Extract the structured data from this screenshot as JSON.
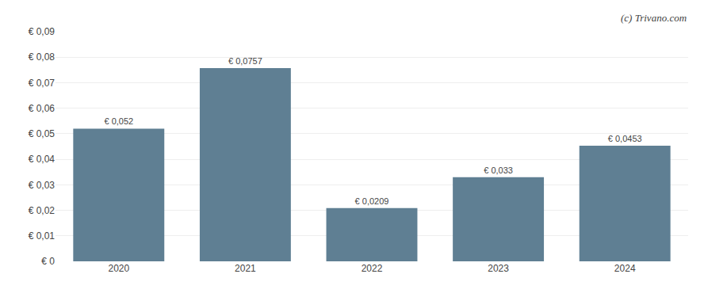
{
  "chart_data": {
    "type": "bar",
    "categories": [
      "2020",
      "2021",
      "2022",
      "2023",
      "2024"
    ],
    "values": [
      0.052,
      0.0757,
      0.0209,
      0.033,
      0.0453
    ],
    "value_labels": [
      "€ 0,052",
      "€ 0,0757",
      "€ 0,0209",
      "€ 0,033",
      "€ 0,0453"
    ],
    "data_labels": true,
    "color": "#5f7f93",
    "ylim": [
      0,
      0.09
    ],
    "yticks": [
      {
        "value": 0,
        "label": "€ 0"
      },
      {
        "value": 0.01,
        "label": "€ 0,01"
      },
      {
        "value": 0.02,
        "label": "€ 0,02"
      },
      {
        "value": 0.03,
        "label": "€ 0,03"
      },
      {
        "value": 0.04,
        "label": "€ 0,04"
      },
      {
        "value": 0.05,
        "label": "€ 0,05"
      },
      {
        "value": 0.06,
        "label": "€ 0,06"
      },
      {
        "value": 0.07,
        "label": "€ 0,07"
      },
      {
        "value": 0.08,
        "label": "€ 0,08"
      },
      {
        "value": 0.09,
        "label": "€ 0,09"
      }
    ],
    "grid": true,
    "annotations": [
      "(c) Trivano.com"
    ]
  }
}
